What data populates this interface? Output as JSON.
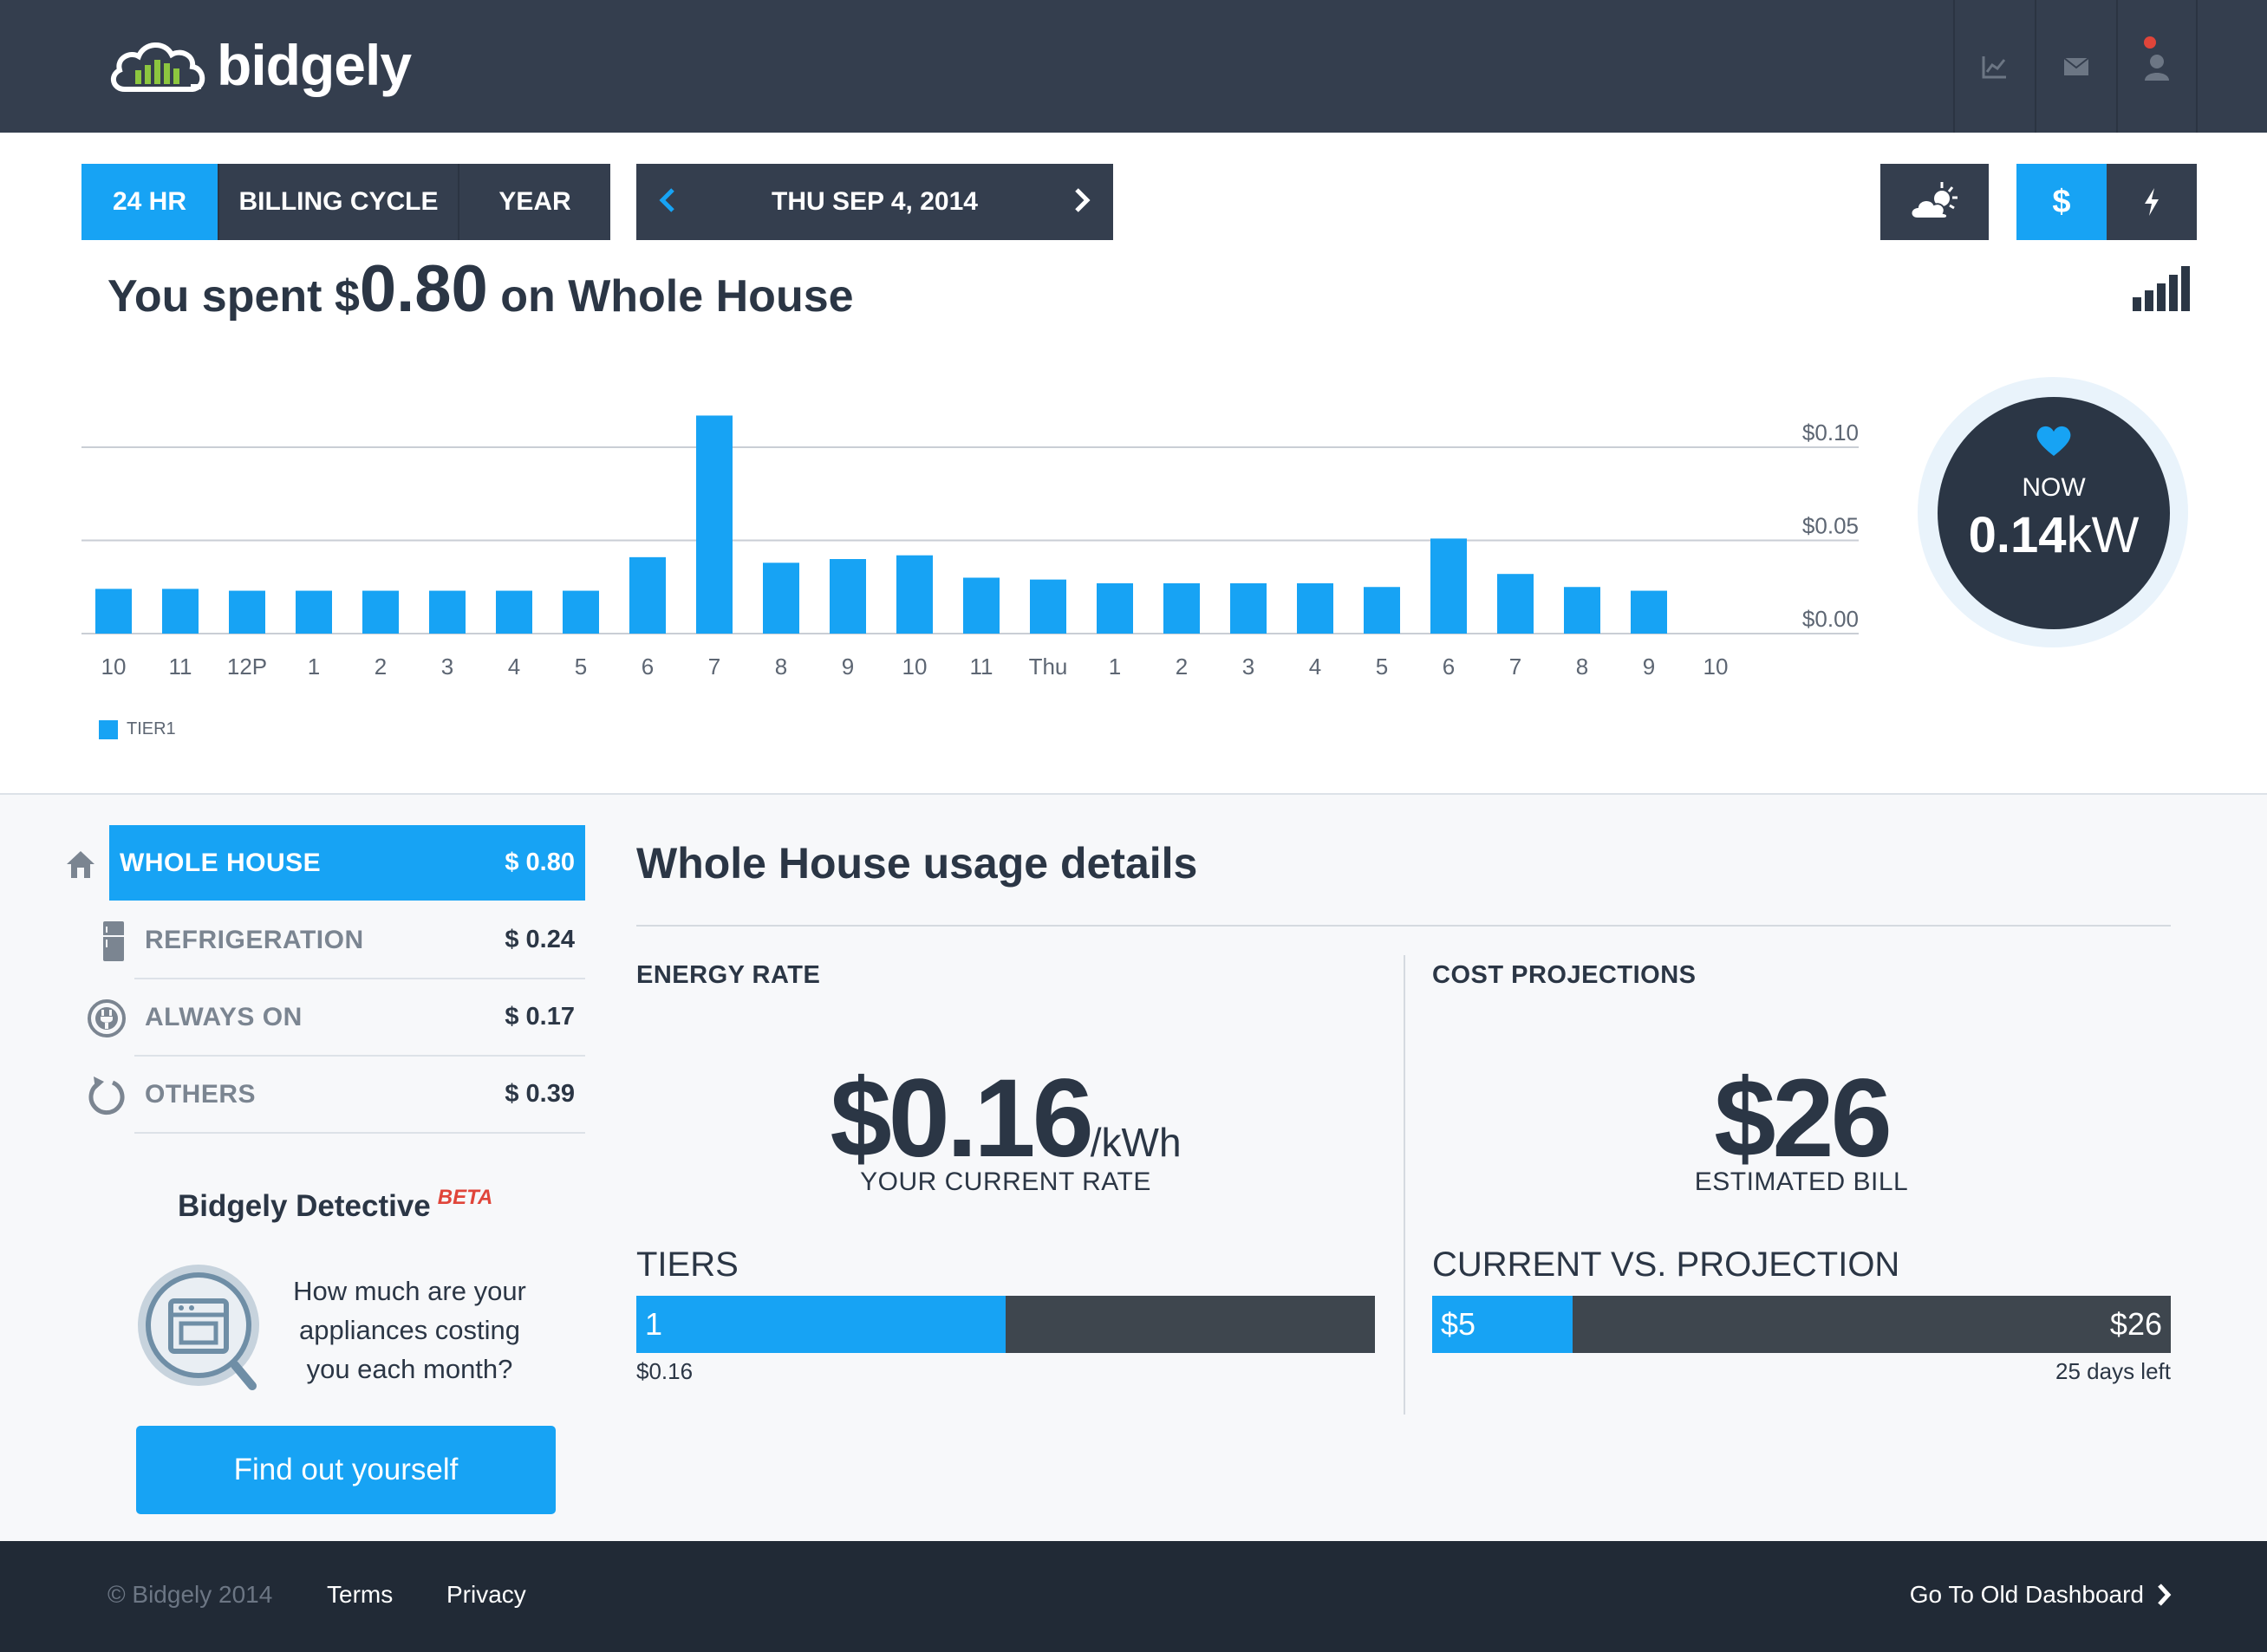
{
  "header": {
    "logo_text": "bidgely"
  },
  "toolbar": {
    "ranges": [
      "24 HR",
      "BILLING CYCLE",
      "YEAR"
    ],
    "active_range": "24 HR",
    "date_label": "THU SEP 4, 2014",
    "units": [
      "$",
      "⚡"
    ],
    "active_unit": "$"
  },
  "summary": {
    "prefix": "You spent ",
    "currency": "$",
    "amount": "0.80",
    "suffix": " on Whole House"
  },
  "chart_data": {
    "type": "bar",
    "categories": [
      "10",
      "11",
      "12P",
      "1",
      "2",
      "3",
      "4",
      "5",
      "6",
      "7",
      "8",
      "9",
      "10",
      "11",
      "Thu",
      "1",
      "2",
      "3",
      "4",
      "5",
      "6",
      "7",
      "8",
      "9",
      "10"
    ],
    "series": [
      {
        "name": "TIER1",
        "values": [
          0.024,
          0.024,
          0.023,
          0.023,
          0.023,
          0.023,
          0.023,
          0.023,
          0.041,
          0.117,
          0.038,
          0.04,
          0.042,
          0.03,
          0.029,
          0.027,
          0.027,
          0.027,
          0.027,
          0.025,
          0.051,
          0.032,
          0.025,
          0.023,
          null
        ]
      }
    ],
    "y_ticks": [
      "$0.00",
      "$0.05",
      "$0.10"
    ],
    "y_tick_values": [
      0,
      0.05,
      0.1
    ],
    "ylim": [
      0,
      0.1
    ],
    "legend": "bottom-left",
    "grid": true,
    "color": "#17a3f4"
  },
  "now": {
    "label": "NOW",
    "value": "0.14",
    "unit": "kW"
  },
  "categories": [
    {
      "name": "WHOLE HOUSE",
      "cost": "$ 0.80",
      "icon": "house-icon",
      "active": true
    },
    {
      "name": "REFRIGERATION",
      "cost": "$ 0.24",
      "icon": "refrigerator-icon",
      "active": false
    },
    {
      "name": "ALWAYS ON",
      "cost": "$ 0.17",
      "icon": "plug-icon",
      "active": false
    },
    {
      "name": "OTHERS",
      "cost": "$ 0.39",
      "icon": "refresh-icon",
      "active": false
    }
  ],
  "detective": {
    "title": "Bidgely Detective",
    "badge": "BETA",
    "text": "How much are your appliances costing you each month?",
    "button": "Find out yourself"
  },
  "details": {
    "title": "Whole House usage details",
    "energy_rate": {
      "heading": "ENERGY RATE",
      "value": "$0.16",
      "unit": "/kWh",
      "caption": "YOUR CURRENT RATE",
      "bar_title": "TIERS",
      "bar_label": "1",
      "bar_fill": 0.5,
      "bar_sub": "$0.16"
    },
    "cost_projections": {
      "heading": "COST PROJECTIONS",
      "value": "$26",
      "caption": "ESTIMATED BILL",
      "bar_title": "CURRENT VS. PROJECTION",
      "bar_label": "$5",
      "bar_end": "$26",
      "bar_fill": 0.19,
      "bar_sub": "25 days left"
    }
  },
  "footer": {
    "copyright": "© Bidgely 2014",
    "terms": "Terms",
    "privacy": "Privacy",
    "old_dashboard": "Go To Old Dashboard"
  }
}
